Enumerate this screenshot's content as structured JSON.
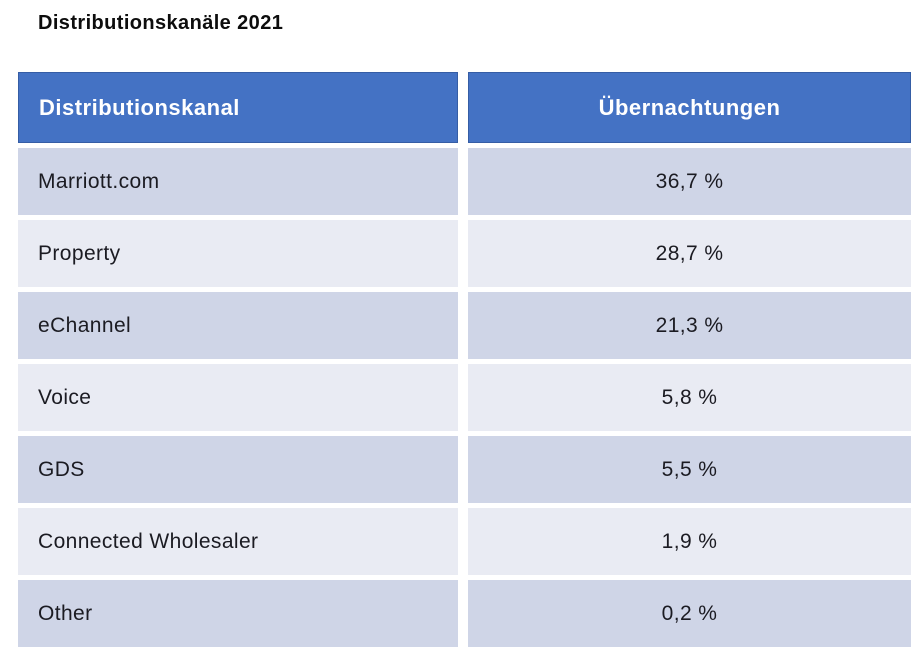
{
  "title": "Distributionskanäle 2021",
  "table": {
    "columns": [
      {
        "label": "Distributionskanal"
      },
      {
        "label": "Übernachtungen"
      }
    ],
    "rows": [
      {
        "channel": "Marriott.com",
        "value": "36,7 %"
      },
      {
        "channel": "Property",
        "value": "28,7 %"
      },
      {
        "channel": "eChannel",
        "value": "21,3 %"
      },
      {
        "channel": "Voice",
        "value": "5,8 %"
      },
      {
        "channel": "GDS",
        "value": "5,5 %"
      },
      {
        "channel": "Connected Wholesaler",
        "value": "1,9 %"
      },
      {
        "channel": "Other",
        "value": "0,2 %"
      }
    ]
  },
  "chart_data": {
    "type": "table",
    "title": "Distributionskanäle 2021",
    "columns": [
      "Distributionskanal",
      "Übernachtungen"
    ],
    "categories": [
      "Marriott.com",
      "Property",
      "eChannel",
      "Voice",
      "GDS",
      "Connected Wholesaler",
      "Other"
    ],
    "values": [
      36.7,
      28.7,
      21.3,
      5.8,
      5.5,
      1.9,
      0.2
    ],
    "unit": "%"
  },
  "colors": {
    "header_bg": "#4472C4",
    "header_text": "#FFFFFF",
    "row_dark": "#CFD5E7",
    "row_light": "#E9EBF3",
    "cell_text": "#1B1B22",
    "title_text": "#0D0D0D",
    "background": "#FFFFFF"
  }
}
